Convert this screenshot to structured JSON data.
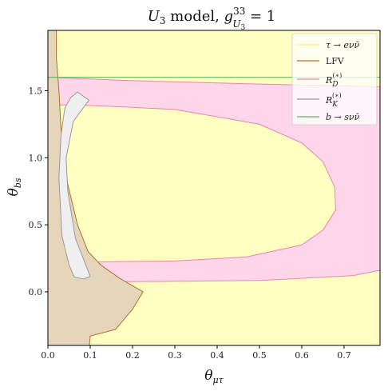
{
  "chart_data": {
    "type": "area",
    "title": "U₃ model, g³³U₃ = 1",
    "title_parts": {
      "base": "U",
      "base_sub": "3",
      "mid": " model, ",
      "g": "g",
      "g_sup": "33",
      "g_sub": "U",
      "g_sub_sub": "3",
      "tail": " = 1"
    },
    "xlabel": "θμτ",
    "xlabel_parts": {
      "main": "θ",
      "sub": "μτ"
    },
    "ylabel": "θbs",
    "ylabel_parts": {
      "main": "θ",
      "sub": "bs"
    },
    "xlim": [
      0.0,
      0.785
    ],
    "ylim": [
      -0.4,
      1.95
    ],
    "xticks": [
      "0.0",
      "0.1",
      "0.2",
      "0.3",
      "0.4",
      "0.5",
      "0.6",
      "0.7"
    ],
    "xtick_values": [
      0.0,
      0.1,
      0.2,
      0.3,
      0.4,
      0.5,
      0.6,
      0.7
    ],
    "yticks": [
      "0.0",
      "0.5",
      "1.0",
      "1.5"
    ],
    "ytick_values": [
      0.0,
      0.5,
      1.0,
      1.5
    ],
    "legend_placement": "top-right",
    "grid": false,
    "series": [
      {
        "name": "τ → eνν̄",
        "fill": "#ffffc2",
        "stroke": "#f1f17a",
        "polygon": [
          [
            0.0,
            -0.4
          ],
          [
            0.785,
            -0.4
          ],
          [
            0.785,
            1.95
          ],
          [
            0.0,
            1.95
          ]
        ]
      },
      {
        "name": "LFV",
        "fill": "#e5d6bb",
        "stroke": "#b0702a",
        "polygon": [
          [
            0.0,
            -0.4
          ],
          [
            0.098,
            -0.4
          ],
          [
            0.1,
            -0.33
          ],
          [
            0.16,
            -0.28
          ],
          [
            0.2,
            -0.13
          ],
          [
            0.225,
            0.0
          ],
          [
            0.17,
            0.1
          ],
          [
            0.125,
            0.2
          ],
          [
            0.095,
            0.3
          ],
          [
            0.07,
            0.5
          ],
          [
            0.047,
            0.8
          ],
          [
            0.033,
            1.1
          ],
          [
            0.026,
            1.5
          ],
          [
            0.02,
            1.75
          ],
          [
            0.02,
            1.95
          ],
          [
            0.0,
            1.95
          ]
        ]
      },
      {
        "name": "R_D^(*)",
        "fill": "#ffd6ea",
        "stroke": "#ee82b4",
        "polygon": [
          [
            0.0,
            0.07
          ],
          [
            0.5,
            0.085
          ],
          [
            0.72,
            0.12
          ],
          [
            0.785,
            0.16
          ],
          [
            0.785,
            1.53
          ],
          [
            0.5,
            1.55
          ],
          [
            0.2,
            1.575
          ],
          [
            0.0,
            1.6
          ]
        ],
        "hole": [
          [
            0.025,
            0.22
          ],
          [
            0.3,
            0.23
          ],
          [
            0.47,
            0.26
          ],
          [
            0.6,
            0.35
          ],
          [
            0.65,
            0.46
          ],
          [
            0.68,
            0.61
          ],
          [
            0.678,
            0.78
          ],
          [
            0.65,
            0.97
          ],
          [
            0.6,
            1.11
          ],
          [
            0.5,
            1.25
          ],
          [
            0.3,
            1.36
          ],
          [
            0.1,
            1.39
          ],
          [
            0.025,
            1.395
          ]
        ]
      },
      {
        "name": "R_K^(*)",
        "fill": "#efefef",
        "stroke": "#999999",
        "polygon": [
          [
            0.07,
            1.49
          ],
          [
            0.097,
            1.43
          ],
          [
            0.06,
            1.27
          ],
          [
            0.043,
            1.0
          ],
          [
            0.047,
            0.75
          ],
          [
            0.065,
            0.4
          ],
          [
            0.1,
            0.115
          ],
          [
            0.085,
            0.095
          ],
          [
            0.062,
            0.11
          ],
          [
            0.05,
            0.2
          ],
          [
            0.033,
            0.42
          ],
          [
            0.026,
            0.85
          ],
          [
            0.031,
            1.17
          ],
          [
            0.04,
            1.37
          ],
          [
            0.054,
            1.45
          ]
        ]
      },
      {
        "name": "b → sνν̄",
        "stroke": "#5cb85c",
        "y_value": 1.6
      }
    ],
    "legend": [
      {
        "label": "τ → eνν̄",
        "color": "#f1f17a"
      },
      {
        "label": "LFV",
        "color": "#b0702a"
      },
      {
        "label": "R_D^(*)",
        "color": "#ee82b4"
      },
      {
        "label": "R_K^(*)",
        "color": "#999999"
      },
      {
        "label": "b → sνν̄",
        "color": "#5cb85c"
      }
    ]
  }
}
